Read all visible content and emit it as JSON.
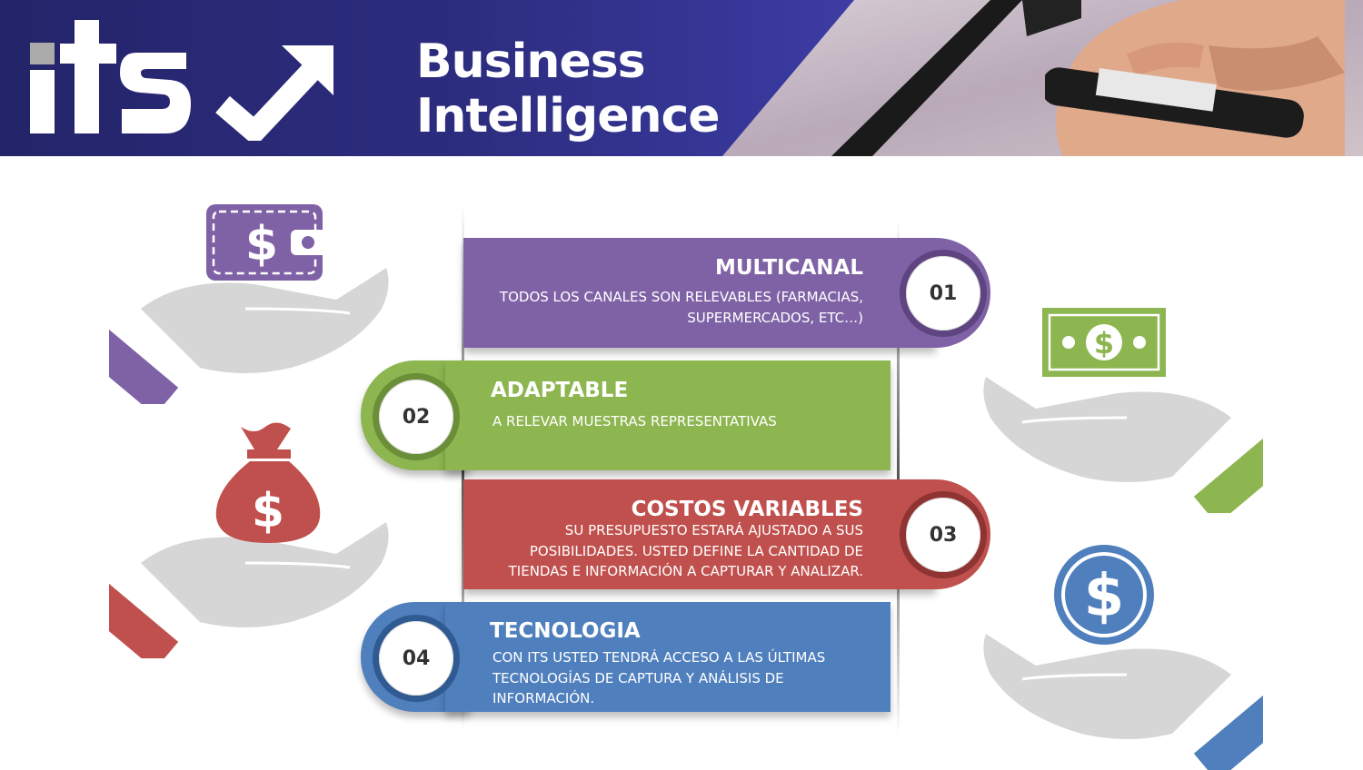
{
  "header": {
    "logo_text": "its",
    "title_line1": "Business",
    "title_line2": "Intelligence"
  },
  "colors": {
    "header_dark": "#2a2a6e",
    "purple": "#7f62a6",
    "green": "#8db650",
    "red": "#c0504d",
    "blue": "#4f7fbd",
    "hand_gray": "#d6d6d6"
  },
  "items": [
    {
      "number": "01",
      "heading": "MULTICANAL",
      "lines": [
        "TODOS LOS CANALES SON RELEVABLES (FARMACIAS,",
        "SUPERMERCADOS, ETC…)"
      ]
    },
    {
      "number": "02",
      "heading": "ADAPTABLE",
      "lines": [
        "A RELEVAR MUESTRAS REPRESENTATIVAS"
      ]
    },
    {
      "number": "03",
      "heading": "COSTOS VARIABLES",
      "lines": [
        "SU PRESUPUESTO ESTARÁ AJUSTADO A SUS",
        "POSIBILIDADES. USTED DEFINE LA CANTIDAD DE",
        "TIENDAS E INFORMACIÓN A CAPTURAR Y ANALIZAR."
      ]
    },
    {
      "number": "04",
      "heading": "TECNOLOGIA",
      "lines": [
        "CON ITS USTED TENDRÁ ACCESO A LAS ÚLTIMAS",
        "TECNOLOGÍAS DE CAPTURA Y ANÁLISIS DE",
        "INFORMACIÓN."
      ]
    }
  ],
  "icons": [
    "wallet-icon",
    "money-bag-icon",
    "banknote-icon",
    "dollar-coin-icon",
    "hand-icon",
    "check-arrow-icon",
    "marker-icon"
  ]
}
